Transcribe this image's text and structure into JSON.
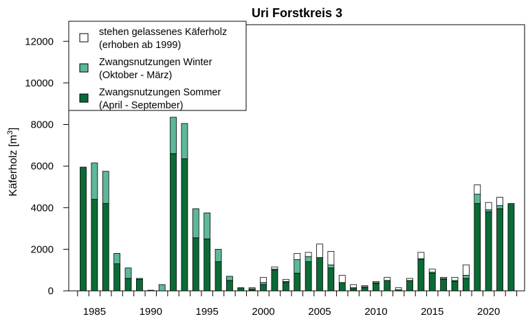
{
  "chart_data": {
    "type": "bar",
    "stacked": true,
    "title": "Uri Forstkreis 3",
    "xlabel": "",
    "ylabel": "Käferholz [m",
    "ylabel_superscript": "3",
    "ylabel_suffix": "]",
    "ylim": [
      0,
      12800
    ],
    "yticks": [
      0,
      2000,
      4000,
      6000,
      8000,
      10000,
      12000
    ],
    "xticks": [
      1985,
      1990,
      1995,
      2000,
      2005,
      2010,
      2015,
      2020
    ],
    "years": [
      1984,
      1985,
      1986,
      1987,
      1988,
      1989,
      1990,
      1991,
      1992,
      1993,
      1994,
      1995,
      1996,
      1997,
      1998,
      1999,
      2000,
      2001,
      2002,
      2003,
      2004,
      2005,
      2006,
      2007,
      2008,
      2009,
      2010,
      2011,
      2012,
      2013,
      2014,
      2015,
      2016,
      2017,
      2018,
      2019,
      2020,
      2021,
      2022
    ],
    "series": [
      {
        "name": "Zwangsnutzungen Sommer (April - September)",
        "color": "#0b6b35",
        "values": [
          5950,
          4400,
          4200,
          1300,
          600,
          550,
          0,
          0,
          6600,
          6350,
          2550,
          2500,
          1400,
          500,
          150,
          50,
          300,
          1000,
          400,
          850,
          1400,
          1600,
          1100,
          400,
          100,
          150,
          350,
          500,
          50,
          500,
          1500,
          850,
          550,
          450,
          600,
          4200,
          3800,
          3950,
          4200
        ]
      },
      {
        "name": "Zwangsnutzungen Winter (Oktober - März)",
        "color": "#5db899",
        "values": [
          0,
          1750,
          1550,
          500,
          500,
          50,
          30,
          300,
          1750,
          1700,
          1400,
          1250,
          600,
          200,
          0,
          50,
          100,
          50,
          50,
          650,
          250,
          0,
          150,
          0,
          50,
          50,
          50,
          0,
          0,
          0,
          50,
          50,
          50,
          50,
          150,
          450,
          100,
          150,
          0
        ]
      },
      {
        "name": "stehen gelassenes Käferholz (erhoben ab 1999)",
        "color": "#ffffff",
        "values": [
          0,
          0,
          0,
          0,
          0,
          0,
          0,
          0,
          0,
          0,
          0,
          0,
          0,
          0,
          0,
          50,
          250,
          100,
          100,
          300,
          200,
          650,
          650,
          350,
          150,
          50,
          50,
          150,
          100,
          100,
          300,
          150,
          50,
          150,
          500,
          450,
          350,
          400,
          0
        ]
      }
    ],
    "legend": {
      "placement": "top-left",
      "entries": [
        {
          "line1": "stehen gelassenes Käferholz",
          "line2": "(erhoben ab 1999)",
          "color": "#ffffff"
        },
        {
          "line1": "Zwangsnutzungen Winter",
          "line2": "(Oktober - März)",
          "color": "#5db899"
        },
        {
          "line1": "Zwangsnutzungen Sommer",
          "line2": "(April - September)",
          "color": "#0b6b35"
        }
      ]
    },
    "grid": false
  }
}
